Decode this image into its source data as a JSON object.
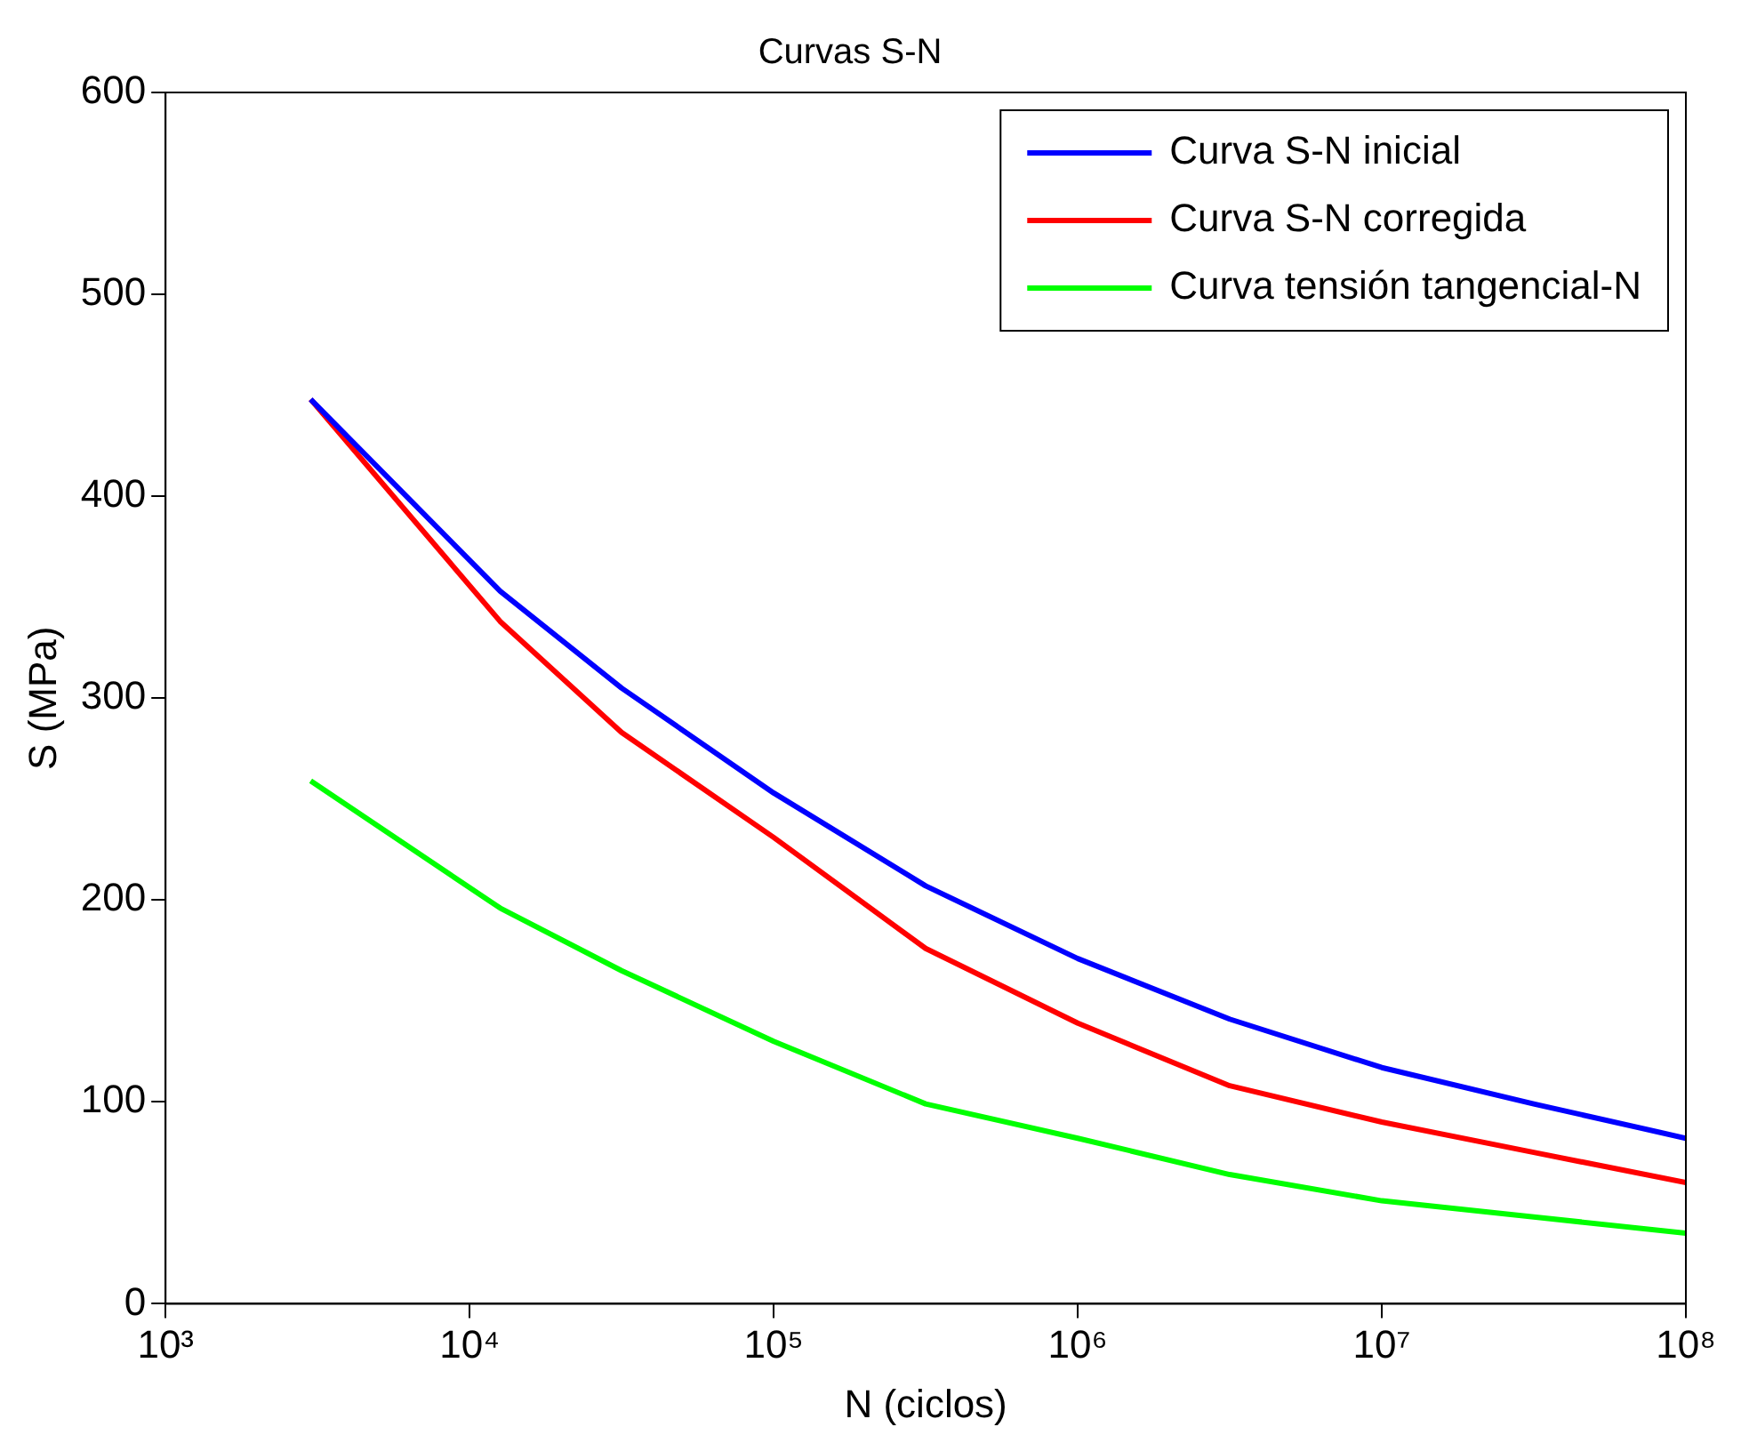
{
  "chart_data": {
    "type": "line",
    "title": "Curvas S-N",
    "xlabel": "N (ciclos)",
    "ylabel": "S (MPa)",
    "log": "x",
    "x": [
      3000,
      12600,
      31600,
      100000,
      316000,
      1000000,
      3160000,
      10000000,
      31600000,
      100000000
    ],
    "series": [
      {
        "name": "Curva S-N inicial",
        "color": "#0000ff",
        "values": [
          448,
          353,
          305,
          253,
          207,
          171,
          141,
          117,
          99,
          82
        ]
      },
      {
        "name": "Curva S-N corregida",
        "color": "#ff0000",
        "values": [
          448,
          338,
          283,
          231,
          176,
          139,
          108,
          90,
          75,
          60
        ]
      },
      {
        "name": "Curva tensión tangencial-N",
        "color": "#00ff00",
        "values": [
          259,
          196,
          165,
          130,
          99,
          82,
          64,
          51,
          43,
          35
        ]
      }
    ],
    "xlim": [
      1000,
      100000000
    ],
    "xticks": [
      {
        "value": 1000,
        "label": "10³"
      },
      {
        "value": 10000,
        "label": "10⁴"
      },
      {
        "value": 100000,
        "label": "10⁵"
      },
      {
        "value": 1000000,
        "label": "10⁶"
      },
      {
        "value": 10000000,
        "label": "10⁷"
      },
      {
        "value": 100000000,
        "label": "10⁸"
      }
    ],
    "ylim": [
      0,
      600
    ],
    "yticks": [
      0,
      100,
      200,
      300,
      400,
      500,
      600
    ],
    "grid": false,
    "legend": "top right",
    "marker": "none",
    "line_style": "solid"
  }
}
